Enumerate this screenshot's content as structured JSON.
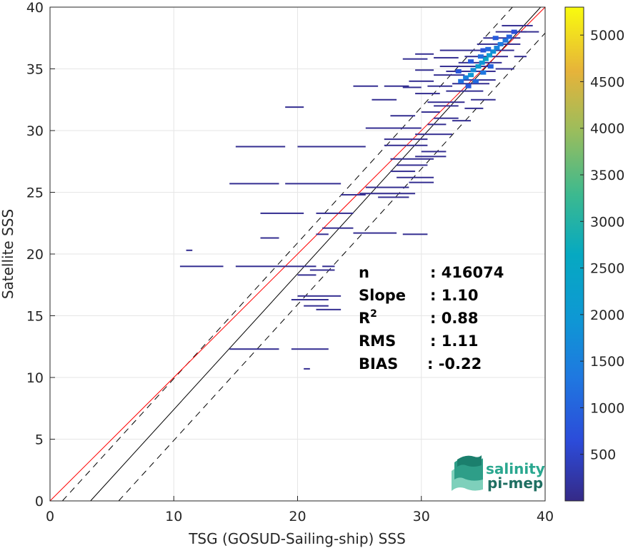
{
  "chart_data": {
    "type": "heatmap",
    "title": "",
    "xlabel": "TSG (GOSUD-Sailing-ship) SSS",
    "ylabel": "Satellite SSS",
    "xlim": [
      0,
      40
    ],
    "ylim": [
      0,
      40
    ],
    "x_ticks": [
      0,
      10,
      20,
      30,
      40
    ],
    "y_ticks": [
      0,
      5,
      10,
      15,
      20,
      25,
      30,
      35,
      40
    ],
    "grid": true,
    "colormap": "parula",
    "colorbar": {
      "range": [
        0,
        5300
      ],
      "ticks": [
        500,
        1000,
        1500,
        2000,
        2500,
        3000,
        3500,
        4000,
        4500,
        5000
      ]
    },
    "reference_lines": {
      "one_to_one": {
        "color": "#ff0000",
        "slope": 1.0,
        "intercept": 0
      },
      "regression": {
        "color": "#000000",
        "slope": 1.1,
        "intercept": -3.6
      },
      "bounds": {
        "color": "#000000",
        "style": "dashed",
        "offsets": [
          -2.5,
          2.5
        ]
      }
    },
    "stats": [
      {
        "label": "n",
        "superscript": "",
        "value": ": 416074"
      },
      {
        "label": "Slope",
        "superscript": "",
        "value": ": 1.10"
      },
      {
        "label": "R",
        "superscript": "2",
        "value": ": 0.88"
      },
      {
        "label": "RMS",
        "superscript": "",
        "value": ": 1.11"
      },
      {
        "label": "BIAS",
        "superscript": "",
        "value": ": -0.22"
      }
    ],
    "segments": [
      [
        10.5,
        19.0,
        14.0
      ],
      [
        15.0,
        19.0,
        21.5
      ],
      [
        22.0,
        19.0,
        23.0
      ],
      [
        11.0,
        20.3,
        11.5
      ],
      [
        14.5,
        12.3,
        18.5
      ],
      [
        19.5,
        12.3,
        22.5
      ],
      [
        20.5,
        10.7,
        21.0
      ],
      [
        19.5,
        16.3,
        22.5
      ],
      [
        20.0,
        16.6,
        23.5
      ],
      [
        20.5,
        15.8,
        22.5
      ],
      [
        21.5,
        15.5,
        23.5
      ],
      [
        20.0,
        18.3,
        21.5
      ],
      [
        21.0,
        18.7,
        23.0
      ],
      [
        17.0,
        21.3,
        18.5
      ],
      [
        21.5,
        21.6,
        22.5
      ],
      [
        24.5,
        21.7,
        28.0
      ],
      [
        28.5,
        21.6,
        30.5
      ],
      [
        14.5,
        25.7,
        18.5
      ],
      [
        19.0,
        25.7,
        21.5
      ],
      [
        21.5,
        25.7,
        23.5
      ],
      [
        25.5,
        25.4,
        29.0
      ],
      [
        25.0,
        24.9,
        29.5
      ],
      [
        23.5,
        24.8,
        25.5
      ],
      [
        26.5,
        24.6,
        29.0
      ],
      [
        22.0,
        22.1,
        24.5
      ],
      [
        17.0,
        23.3,
        20.5
      ],
      [
        21.5,
        23.3,
        24.5
      ],
      [
        15.0,
        28.7,
        19.0
      ],
      [
        20.0,
        28.7,
        25.5
      ],
      [
        27.0,
        28.8,
        30.5
      ],
      [
        19.0,
        31.9,
        20.5
      ],
      [
        25.5,
        30.2,
        30.0
      ],
      [
        27.0,
        29.3,
        30.5
      ],
      [
        27.5,
        27.7,
        31.0
      ],
      [
        28.0,
        27.2,
        30.5
      ],
      [
        27.5,
        26.7,
        29.5
      ],
      [
        28.0,
        26.2,
        31.0
      ],
      [
        29.0,
        25.8,
        31.0
      ],
      [
        29.5,
        27.9,
        32.0
      ],
      [
        30.0,
        28.3,
        32.0
      ],
      [
        29.5,
        29.7,
        32.5
      ],
      [
        30.5,
        30.5,
        32.0
      ],
      [
        31.0,
        31.0,
        33.0
      ],
      [
        27.5,
        31.2,
        29.5
      ],
      [
        30.0,
        31.5,
        31.5
      ],
      [
        31.0,
        32.0,
        33.0
      ],
      [
        26.0,
        32.5,
        28.0
      ],
      [
        29.5,
        33.0,
        31.5
      ],
      [
        30.5,
        32.3,
        33.5
      ],
      [
        32.5,
        30.8,
        34.0
      ],
      [
        24.5,
        33.6,
        26.5
      ],
      [
        27.0,
        33.6,
        29.0
      ],
      [
        28.5,
        33.5,
        30.0
      ],
      [
        30.5,
        33.6,
        32.5
      ],
      [
        29.0,
        34.0,
        31.0
      ],
      [
        31.0,
        34.5,
        33.5
      ],
      [
        29.5,
        34.9,
        31.0
      ],
      [
        31.5,
        35.2,
        35.5
      ],
      [
        28.5,
        35.8,
        30.5
      ],
      [
        31.0,
        35.9,
        33.0
      ],
      [
        29.5,
        36.2,
        31.0
      ],
      [
        31.5,
        36.5,
        34.0
      ],
      [
        32.0,
        33.2,
        35.0
      ],
      [
        32.5,
        33.8,
        35.5
      ],
      [
        33.0,
        34.1,
        36.0
      ],
      [
        32.0,
        34.8,
        36.0
      ],
      [
        33.0,
        35.5,
        36.5
      ],
      [
        33.5,
        36.0,
        37.0
      ],
      [
        34.0,
        36.5,
        37.5
      ],
      [
        34.5,
        37.0,
        38.0
      ],
      [
        35.0,
        37.5,
        38.0
      ],
      [
        36.0,
        38.0,
        38.5
      ],
      [
        36.5,
        38.5,
        39.0
      ],
      [
        38.0,
        38.0,
        39.5
      ],
      [
        37.5,
        36.0,
        38.5
      ],
      [
        36.0,
        35.0,
        37.5
      ],
      [
        34.0,
        32.5,
        36.0
      ],
      [
        33.5,
        31.8,
        35.0
      ]
    ],
    "dense_cells": [
      [
        33.2,
        34.0,
        1200
      ],
      [
        33.6,
        34.3,
        1500
      ],
      [
        34.0,
        34.5,
        2000
      ],
      [
        34.2,
        34.9,
        1700
      ],
      [
        34.6,
        35.2,
        2200
      ],
      [
        34.9,
        35.5,
        1900
      ],
      [
        35.2,
        35.8,
        2500
      ],
      [
        35.5,
        36.1,
        2100
      ],
      [
        35.8,
        36.4,
        1800
      ],
      [
        36.1,
        36.7,
        1600
      ],
      [
        36.4,
        37.0,
        1400
      ],
      [
        36.8,
        37.3,
        1300
      ],
      [
        37.1,
        37.6,
        1000
      ],
      [
        33.8,
        33.6,
        900
      ],
      [
        34.4,
        34.0,
        1100
      ],
      [
        35.0,
        34.7,
        1300
      ],
      [
        35.6,
        35.2,
        1000
      ],
      [
        33.0,
        34.8,
        800
      ],
      [
        34.0,
        35.6,
        900
      ],
      [
        35.0,
        36.5,
        800
      ],
      [
        36.0,
        37.5,
        900
      ],
      [
        37.5,
        38.0,
        700
      ],
      [
        34.8,
        36.0,
        1200
      ],
      [
        35.4,
        36.6,
        1100
      ]
    ]
  },
  "logo": {
    "line1": "salinity",
    "line2": "pi-mep"
  }
}
